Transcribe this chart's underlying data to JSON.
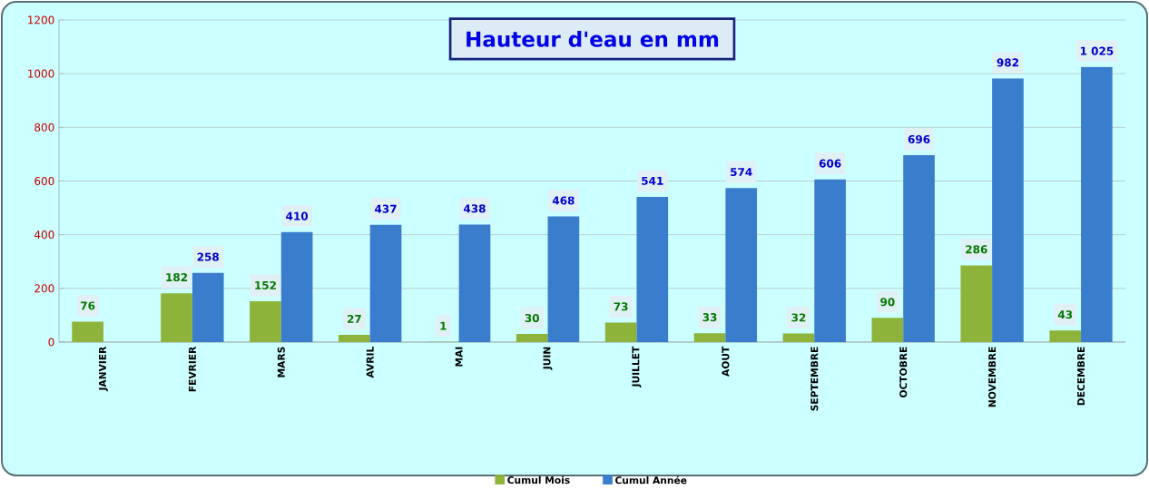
{
  "chart_data": {
    "type": "bar",
    "title": "Hauteur d'eau en mm",
    "categories": [
      "JANVIER",
      "FEVRIER",
      "MARS",
      "AVRIL",
      "MAI",
      "JUIN",
      "JUILLET",
      "AOUT",
      "SEPTEMBRE",
      "OCTOBRE",
      "NOVEMBRE",
      "DECEMBRE"
    ],
    "series": [
      {
        "name": "Cumul Mois",
        "color": "#8db33a",
        "values": [
          76,
          182,
          152,
          27,
          1,
          30,
          73,
          33,
          32,
          90,
          286,
          43
        ],
        "value_labels": [
          "76",
          "182",
          "152",
          "27",
          "1",
          "30",
          "73",
          "33",
          "32",
          "90",
          "286",
          "43"
        ]
      },
      {
        "name": "Cumul Année",
        "color": "#3a7dcc",
        "values": [
          null,
          258,
          410,
          437,
          438,
          468,
          541,
          574,
          606,
          696,
          982,
          1025
        ],
        "value_labels": [
          null,
          "258",
          "410",
          "437",
          "438",
          "468",
          "541",
          "574",
          "606",
          "696",
          "982",
          "1 025"
        ]
      }
    ],
    "ylim": [
      0,
      1200
    ],
    "yticks": [
      0,
      200,
      400,
      600,
      800,
      1000,
      1200
    ],
    "grid": "y",
    "legend": "bottom"
  }
}
